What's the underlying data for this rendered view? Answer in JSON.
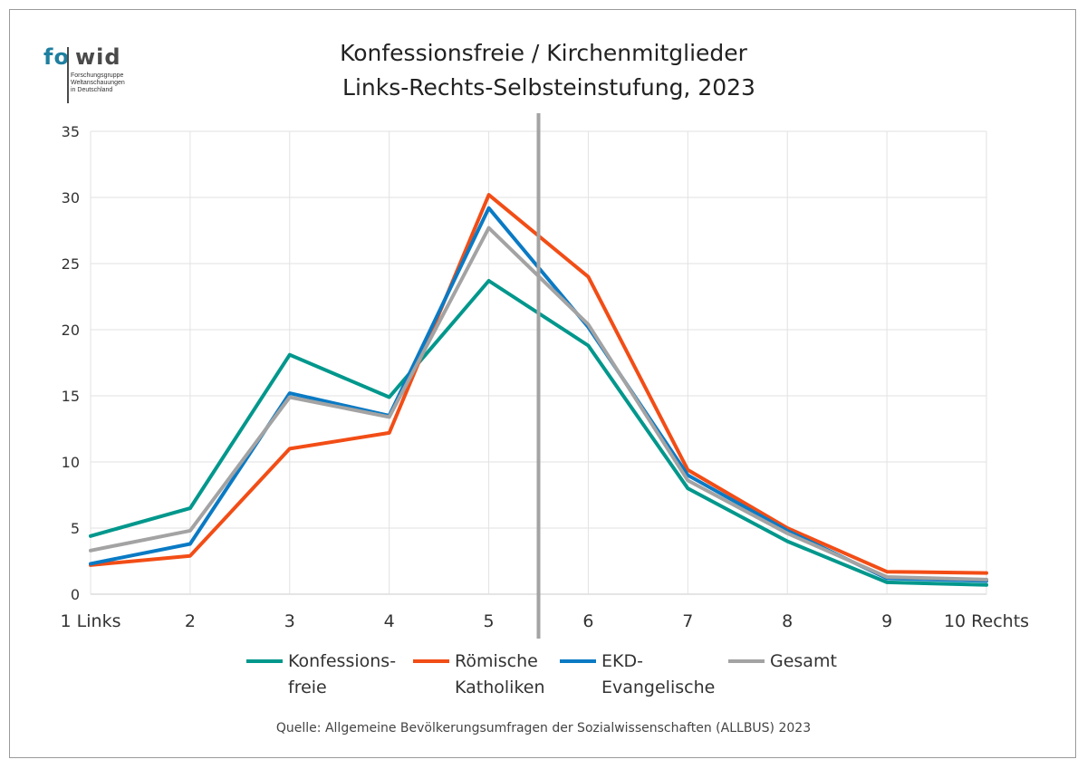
{
  "logo": {
    "prefix": "fo",
    "suffix": "wid",
    "subtitle_lines": [
      "Forschungsgruppe",
      "Weltanschauungen",
      "in Deutschland"
    ]
  },
  "header": {
    "title_line1": "Konfessionsfreie / Kirchenmitglieder",
    "title_line2": "Links-Rechts-Selbsteinstufung, 2023"
  },
  "source": "Quelle: Allgemeine Bevölkerungsumfragen der Sozialwissenschaften (ALLBUS) 2023",
  "legend": [
    {
      "line1": "Konfessions-",
      "line2": "freie",
      "color": "#00978c"
    },
    {
      "line1": "Römische",
      "line2": "Katholiken",
      "color": "#f24d16"
    },
    {
      "line1": "EKD-",
      "line2": "Evangelische",
      "color": "#0a7ac4"
    },
    {
      "line1": "Gesamt",
      "line2": "",
      "color": "#a3a3a3"
    }
  ],
  "chart_data": {
    "type": "line",
    "categories": [
      "1 Links",
      "2",
      "3",
      "4",
      "5",
      "6",
      "7",
      "8",
      "9",
      "10 Rechts"
    ],
    "ylim": [
      0,
      35
    ],
    "yticks": [
      0,
      5,
      10,
      15,
      20,
      25,
      30,
      35
    ],
    "grid": true,
    "legend_position": "bottom",
    "series": [
      {
        "name": "Konfessions- freie",
        "color": "#00978c",
        "values": [
          4.4,
          6.5,
          18.1,
          14.9,
          23.7,
          18.8,
          8.0,
          4.0,
          0.9,
          0.7
        ]
      },
      {
        "name": "Römische Katholiken",
        "color": "#f24d16",
        "values": [
          2.2,
          2.9,
          11.0,
          12.2,
          30.2,
          24.0,
          9.4,
          5.0,
          1.7,
          1.6
        ]
      },
      {
        "name": "EKD- Evangelische",
        "color": "#0a7ac4",
        "values": [
          2.3,
          3.8,
          15.2,
          13.5,
          29.2,
          20.2,
          9.0,
          4.8,
          1.2,
          1.0
        ]
      },
      {
        "name": "Gesamt",
        "color": "#a3a3a3",
        "values": [
          3.3,
          4.8,
          14.9,
          13.4,
          27.7,
          20.4,
          8.6,
          4.6,
          1.3,
          1.1
        ]
      }
    ],
    "divider_after_category_index": 4.5,
    "divider_color": "#a3a3a3"
  }
}
